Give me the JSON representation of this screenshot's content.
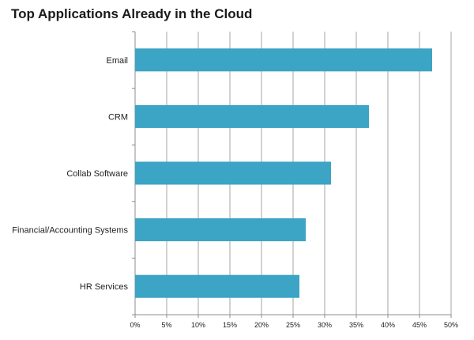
{
  "chart_data": {
    "type": "bar",
    "orientation": "horizontal",
    "title": "Top Applications Already in the Cloud",
    "categories": [
      "Email",
      "CRM",
      "Collab Software",
      "Financial/Accounting Systems",
      "HR Services"
    ],
    "values": [
      47,
      37,
      31,
      27,
      26
    ],
    "xlim": [
      0,
      50
    ],
    "xticks": [
      0,
      5,
      10,
      15,
      20,
      25,
      30,
      35,
      40,
      45,
      50
    ],
    "xtick_labels": [
      "0%",
      "5%",
      "10%",
      "15%",
      "20%",
      "25%",
      "30%",
      "35%",
      "40%",
      "45%",
      "50%"
    ],
    "xlabel": "",
    "ylabel": "",
    "grid": "vertical",
    "legend": "none",
    "bar_color": "#3ca4c4",
    "grid_color": "#a6a6a6",
    "axis_color": "#8c8c8c"
  }
}
